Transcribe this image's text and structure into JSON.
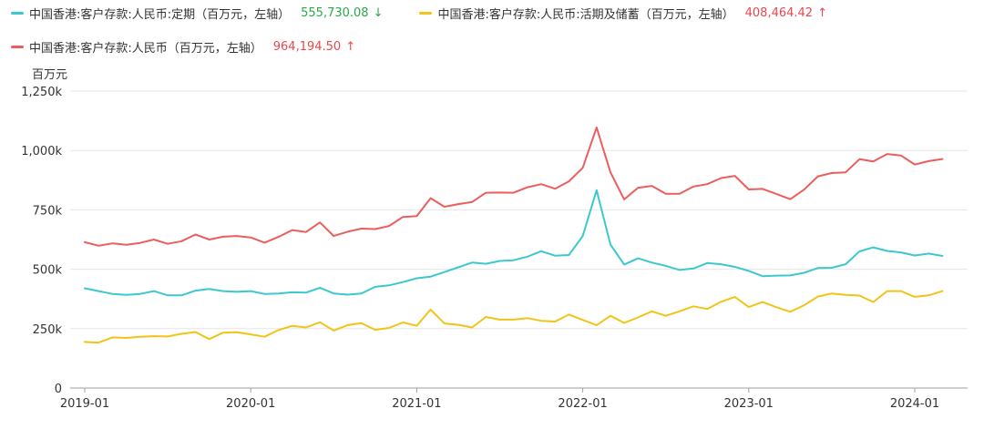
{
  "legend": {
    "row1": [
      {
        "name": "中国香港:客户存款:人民币:定期（百万元，左轴）",
        "value": "555,730.08",
        "arrow": "↓",
        "color": "#3cc8cf",
        "value_color": "#2ba84a"
      },
      {
        "name": "中国香港:客户存款:人民币:活期及储蓄（百万元，左轴）",
        "value": "408,464.42",
        "arrow": "↑",
        "color": "#f2c318",
        "value_color": "#e8484b"
      }
    ],
    "row2": [
      {
        "name": "中国香港:客户存款:人民币（百万元，左轴）",
        "value": "964,194.50",
        "arrow": "↑",
        "color": "#ec5e5c",
        "value_color": "#e8484b"
      }
    ]
  },
  "chart_data": {
    "type": "line",
    "ylabel": "百万元",
    "ylim": [
      0,
      1250000
    ],
    "yticks": [
      0,
      250000,
      500000,
      750000,
      1000000,
      1250000
    ],
    "ytick_labels": [
      "0",
      "250k",
      "500k",
      "750k",
      "1,000k",
      "1,250k"
    ],
    "xticks": [
      "2019-01",
      "2020-01",
      "2021-01",
      "2022-01",
      "2023-01",
      "2024-01"
    ],
    "x_start": "2019-01",
    "x_end": "2024-03",
    "grid": true,
    "series": [
      {
        "name": "中国香港:客户存款:人民币:定期（百万元，左轴）",
        "color": "#3cc8cf",
        "values": [
          420000,
          408000,
          396000,
          392000,
          396000,
          408000,
          390000,
          390000,
          410000,
          417000,
          408000,
          405000,
          408000,
          396000,
          398000,
          403000,
          402000,
          422000,
          398000,
          393000,
          398000,
          426000,
          432000,
          446000,
          462000,
          469000,
          488000,
          508000,
          528000,
          523000,
          535000,
          538000,
          553000,
          576000,
          557000,
          560000,
          640000,
          833000,
          604000,
          520000,
          546000,
          528000,
          514000,
          497000,
          503000,
          526000,
          521000,
          510000,
          493000,
          471000,
          473000,
          474000,
          485000,
          505000,
          506000,
          521000,
          575000,
          592000,
          577000,
          571000,
          558000,
          566000,
          556000
        ]
      },
      {
        "name": "中国香港:客户存款:人民币:活期及储蓄（百万元，左轴）",
        "color": "#f2c318",
        "values": [
          194000,
          191000,
          213000,
          211000,
          216000,
          218000,
          217000,
          228000,
          236000,
          206000,
          233000,
          235000,
          226000,
          216000,
          244000,
          262000,
          255000,
          277000,
          242000,
          265000,
          273000,
          245000,
          253000,
          276000,
          262000,
          330000,
          272000,
          266000,
          255000,
          299000,
          288000,
          288000,
          294000,
          283000,
          280000,
          309000,
          287000,
          264000,
          304000,
          274000,
          297000,
          323000,
          304000,
          323000,
          344000,
          333000,
          363000,
          383000,
          341000,
          362000,
          340000,
          321000,
          348000,
          385000,
          398000,
          392000,
          389000,
          362000,
          408000,
          408000,
          384000,
          390000,
          408000
        ]
      },
      {
        "name": "中国香港:客户存款:人民币（百万元，左轴）",
        "color": "#ec5e5c",
        "values": [
          614000,
          599000,
          609000,
          603000,
          611000,
          625000,
          607000,
          618000,
          646000,
          625000,
          637000,
          640000,
          634000,
          612000,
          636000,
          665000,
          657000,
          697000,
          640000,
          658000,
          671000,
          669000,
          682000,
          720000,
          724000,
          799000,
          763000,
          774000,
          783000,
          822000,
          823000,
          822000,
          845000,
          858000,
          839000,
          870000,
          927000,
          1097000,
          908000,
          794000,
          843000,
          851000,
          818000,
          818000,
          848000,
          858000,
          884000,
          893000,
          836000,
          838000,
          817000,
          795000,
          835000,
          891000,
          905000,
          908000,
          963000,
          954000,
          985000,
          979000,
          941000,
          955000,
          964000
        ]
      }
    ]
  }
}
